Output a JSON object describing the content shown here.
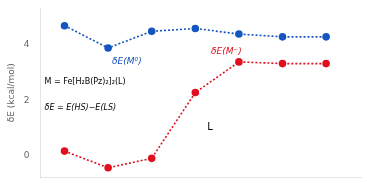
{
  "chart_data": {
    "type": "line",
    "ylabel": "δE (kcal/mol)",
    "x": [
      1,
      2,
      3,
      4,
      5,
      6,
      7
    ],
    "series": [
      {
        "name": "δE(M⁰)",
        "color": "#1555c0",
        "values": [
          4.68,
          3.88,
          4.48,
          4.58,
          4.38,
          4.28,
          4.28
        ],
        "marker": "circle",
        "line_style": "dotted"
      },
      {
        "name": "δE(M⁻)",
        "color": "#e01020",
        "values": [
          0.18,
          -0.42,
          -0.08,
          2.28,
          3.38,
          3.32,
          3.32
        ],
        "marker": "circle",
        "line_style": "dotted"
      }
    ],
    "annotations": [
      "M = Fe[H₂B(Pz)₂]₂(L)",
      "δE = E(HS)−E(LS)",
      "L"
    ],
    "xlim": [
      0.45,
      7.8
    ],
    "ylim": [
      -0.75,
      5.3
    ],
    "yticks": [
      0,
      2,
      4
    ],
    "grid": false,
    "tick_labels": "y"
  }
}
